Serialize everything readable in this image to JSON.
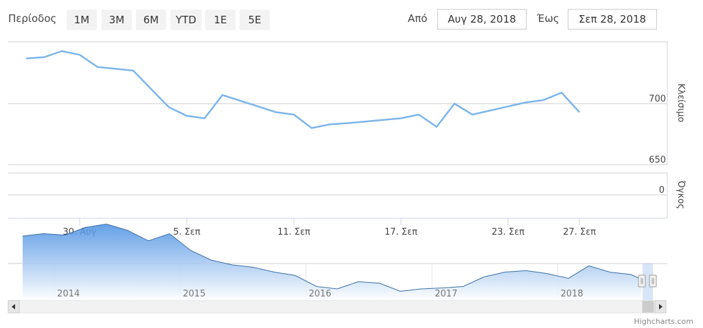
{
  "range_selector": {
    "label": "Περίοδος",
    "buttons": [
      "1M",
      "3M",
      "6M",
      "YTD",
      "1E",
      "5E"
    ]
  },
  "date_inputs": {
    "from_label": "Από",
    "from_value": "Αυγ 28, 2018",
    "to_label": "Έως",
    "to_value": "Σεπ 28, 2018"
  },
  "credits": "Highcharts.com",
  "colors": {
    "line": "#7cb5ec",
    "grid": "#cccccc",
    "axis": "#ccd6eb",
    "navigator_fill_top": "#4a90e2",
    "navigator_line": "#3a6ea5",
    "navigator_mask": "#b6cff0"
  },
  "chart_data": {
    "type": "line",
    "y_axis_title": "Κλείσιμο",
    "y_ticks": [
      650,
      700
    ],
    "ylim": [
      650,
      750
    ],
    "x_ticks": [
      "30. Αυγ",
      "5. Σεπ",
      "11. Σεπ",
      "17. Σεπ",
      "23. Σεπ",
      "27. Σεπ"
    ],
    "x_tick_dates": [
      "2018-08-30",
      "2018-09-05",
      "2018-09-11",
      "2018-09-17",
      "2018-09-23",
      "2018-09-27"
    ],
    "grid": true,
    "series": [
      {
        "values": [
          {
            "date": "2018-08-27",
            "value": 737
          },
          {
            "date": "2018-08-28",
            "value": 738
          },
          {
            "date": "2018-08-29",
            "value": 743
          },
          {
            "date": "2018-08-30",
            "value": 740
          },
          {
            "date": "2018-08-31",
            "value": 730
          },
          {
            "date": "2018-09-02",
            "value": 727
          },
          {
            "date": "2018-09-03",
            "value": 712
          },
          {
            "date": "2018-09-04",
            "value": 697
          },
          {
            "date": "2018-09-05",
            "value": 690
          },
          {
            "date": "2018-09-06",
            "value": 688
          },
          {
            "date": "2018-09-07",
            "value": 707
          },
          {
            "date": "2018-09-10",
            "value": 693
          },
          {
            "date": "2018-09-11",
            "value": 691
          },
          {
            "date": "2018-09-12",
            "value": 680
          },
          {
            "date": "2018-09-13",
            "value": 683
          },
          {
            "date": "2018-09-14",
            "value": 684
          },
          {
            "date": "2018-09-17",
            "value": 688
          },
          {
            "date": "2018-09-18",
            "value": 691
          },
          {
            "date": "2018-09-19",
            "value": 681
          },
          {
            "date": "2018-09-20",
            "value": 700
          },
          {
            "date": "2018-09-21",
            "value": 691
          },
          {
            "date": "2018-09-24",
            "value": 701
          },
          {
            "date": "2018-09-25",
            "value": 703
          },
          {
            "date": "2018-09-26",
            "value": 709
          },
          {
            "date": "2018-09-27",
            "value": 693
          }
        ]
      }
    ],
    "volume_panel": {
      "y_axis_title": "Όγκος",
      "y_ticks": [
        0
      ]
    },
    "navigator": {
      "year_labels": [
        "2014",
        "2015",
        "2016",
        "2017",
        "2018"
      ],
      "points": [
        {
          "date": "2013-10",
          "value": 810
        },
        {
          "date": "2013-12",
          "value": 815
        },
        {
          "date": "2014-02",
          "value": 812
        },
        {
          "date": "2014-04",
          "value": 828
        },
        {
          "date": "2014-06",
          "value": 835
        },
        {
          "date": "2014-08",
          "value": 822
        },
        {
          "date": "2014-10",
          "value": 800
        },
        {
          "date": "2014-12",
          "value": 815
        },
        {
          "date": "2015-02",
          "value": 780
        },
        {
          "date": "2015-04",
          "value": 760
        },
        {
          "date": "2015-06",
          "value": 750
        },
        {
          "date": "2015-08",
          "value": 745
        },
        {
          "date": "2015-10",
          "value": 735
        },
        {
          "date": "2015-12",
          "value": 728
        },
        {
          "date": "2016-02",
          "value": 705
        },
        {
          "date": "2016-04",
          "value": 700
        },
        {
          "date": "2016-06",
          "value": 715
        },
        {
          "date": "2016-08",
          "value": 712
        },
        {
          "date": "2016-10",
          "value": 695
        },
        {
          "date": "2016-12",
          "value": 700
        },
        {
          "date": "2017-02",
          "value": 702
        },
        {
          "date": "2017-04",
          "value": 705
        },
        {
          "date": "2017-06",
          "value": 725
        },
        {
          "date": "2017-08",
          "value": 735
        },
        {
          "date": "2017-10",
          "value": 738
        },
        {
          "date": "2017-12",
          "value": 732
        },
        {
          "date": "2018-02",
          "value": 722
        },
        {
          "date": "2018-04",
          "value": 748
        },
        {
          "date": "2018-06",
          "value": 735
        },
        {
          "date": "2018-08",
          "value": 730
        },
        {
          "date": "2018-09",
          "value": 720
        }
      ],
      "selected_from": "2018-08-28",
      "selected_to": "2018-09-28"
    }
  }
}
